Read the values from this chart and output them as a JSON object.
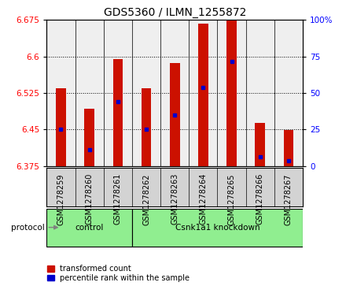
{
  "title": "GDS5360 / ILMN_1255872",
  "samples": [
    "GSM1278259",
    "GSM1278260",
    "GSM1278261",
    "GSM1278262",
    "GSM1278263",
    "GSM1278264",
    "GSM1278265",
    "GSM1278266",
    "GSM1278267"
  ],
  "red_values": [
    6.535,
    6.492,
    6.594,
    6.534,
    6.587,
    6.668,
    6.675,
    6.463,
    6.448
  ],
  "blue_values": [
    6.45,
    6.408,
    6.507,
    6.45,
    6.48,
    6.537,
    6.59,
    6.393,
    6.385
  ],
  "y_min": 6.375,
  "y_max": 6.675,
  "y_ticks": [
    6.375,
    6.45,
    6.525,
    6.6,
    6.675
  ],
  "right_y_ticks": [
    0,
    25,
    50,
    75,
    100
  ],
  "bar_color": "#cc1100",
  "blue_color": "#0000cc",
  "background_color": "#ffffff",
  "gray_col_color": "#d3d3d3",
  "green_color": "#90EE90",
  "title_fontsize": 10,
  "tick_fontsize": 7.5,
  "label_fontsize": 7.5,
  "group_info": [
    {
      "start": 0,
      "end": 2,
      "label": "control"
    },
    {
      "start": 3,
      "end": 8,
      "label": "Csnk1a1 knockdown"
    }
  ]
}
